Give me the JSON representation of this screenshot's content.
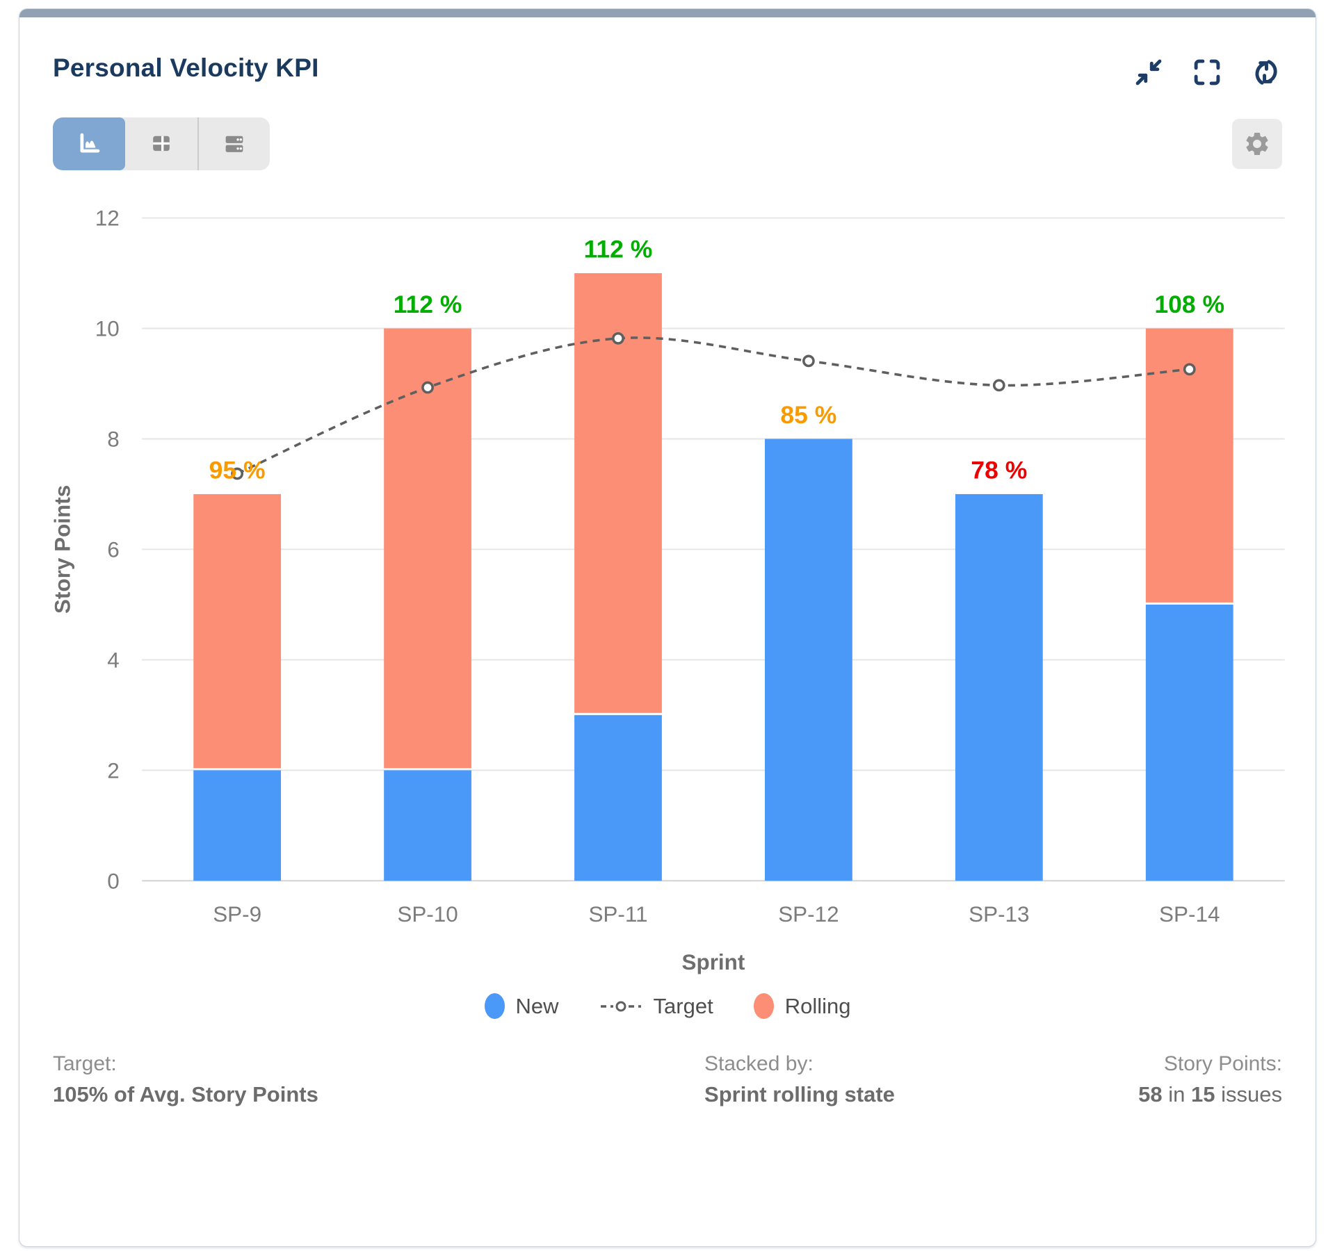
{
  "card": {
    "title": "Personal Velocity KPI"
  },
  "icons": {
    "collapse": "collapse-icon",
    "fullscreen": "fullscreen-icon",
    "refresh": "refresh-icon",
    "settings": "gear-icon",
    "chart_view": "area-chart-icon",
    "table_view": "table-icon",
    "list_view": "rows-icon"
  },
  "colors": {
    "accent_bar": "#92a0b3",
    "title_text": "#1b3a60",
    "header_icons": "#1d3c66",
    "selected_view_bg": "#7fa7d2",
    "new_bar": "#4a99f8",
    "rolling_bar": "#fd8e76",
    "target_line": "#5f5f5f",
    "label_green": "#00ad00",
    "label_orange": "#f99b00",
    "label_red": "#ed0000",
    "axis_text": "#7c7c7c",
    "axis_title_text": "#6e6e6e",
    "gridline": "#e6e6e6",
    "zero_line": "#d4d4d4"
  },
  "chart_data": {
    "type": "bar",
    "stacked": true,
    "title": "",
    "xlabel": "Sprint",
    "ylabel": "Story Points",
    "ylim": [
      0,
      12
    ],
    "ytick_step": 2,
    "grid": true,
    "legend_position": "bottom",
    "categories": [
      "SP-9",
      "SP-10",
      "SP-11",
      "SP-12",
      "SP-13",
      "SP-14"
    ],
    "series": [
      {
        "name": "New",
        "type": "bar",
        "color": "#4a99f8",
        "values": [
          2,
          2,
          3,
          8,
          7,
          5
        ]
      },
      {
        "name": "Rolling",
        "type": "bar",
        "color": "#fd8e76",
        "values": [
          5,
          8,
          8,
          0,
          0,
          5
        ]
      },
      {
        "name": "Target",
        "type": "line",
        "style": "dashed",
        "color": "#5f5f5f",
        "values": [
          7.37,
          8.93,
          9.82,
          9.41,
          8.97,
          9.26
        ]
      }
    ],
    "totals": [
      7,
      10,
      11,
      8,
      7,
      10
    ],
    "point_labels": [
      {
        "text": "95 %",
        "color": "#f99b00"
      },
      {
        "text": "112 %",
        "color": "#00ad00"
      },
      {
        "text": "112 %",
        "color": "#00ad00"
      },
      {
        "text": "85 %",
        "color": "#f99b00"
      },
      {
        "text": "78 %",
        "color": "#ed0000"
      },
      {
        "text": "108 %",
        "color": "#00ad00"
      }
    ],
    "legend": [
      {
        "label": "New",
        "marker": "dot",
        "color": "#4a99f8"
      },
      {
        "label": "Target",
        "marker": "dashed-circle",
        "color": "#5f5f5f"
      },
      {
        "label": "Rolling",
        "marker": "dot",
        "color": "#fd8e76"
      }
    ]
  },
  "footer": {
    "target": {
      "label": "Target:",
      "value": "105% of Avg. Story Points"
    },
    "stacked_by": {
      "label": "Stacked by:",
      "value": "Sprint rolling state"
    },
    "story_points": {
      "label": "Story Points:",
      "bold1": "58",
      "mid": " in ",
      "bold2": "15",
      "suffix": " issues"
    }
  }
}
